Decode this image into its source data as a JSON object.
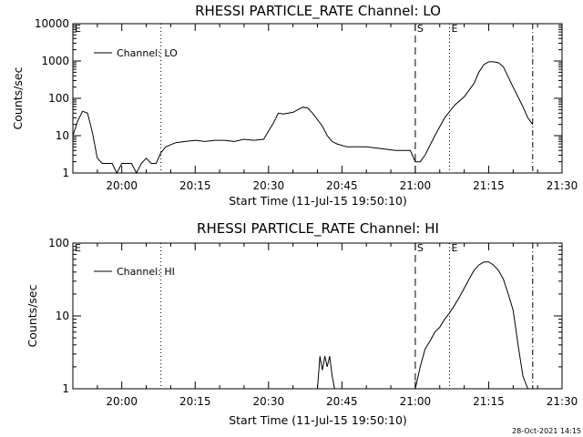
{
  "footer": {
    "timestamp": "28-Oct-2021 14:15"
  },
  "chart_data": [
    {
      "type": "line",
      "title": "RHESSI PARTICLE_RATE Channel: LO",
      "xlabel": "Start Time (11-Jul-15 19:50:10)",
      "ylabel": "Counts/sec",
      "yscale": "log",
      "ylim": [
        1,
        10000
      ],
      "xlim": [
        "19:50",
        "21:30"
      ],
      "x_ticks": [
        "20:00",
        "20:15",
        "20:30",
        "20:45",
        "21:00",
        "21:15",
        "21:30"
      ],
      "y_ticks": [
        "1",
        "10",
        "100",
        "1000",
        "10000"
      ],
      "legend": "top-left",
      "markers": [
        {
          "label": "E",
          "time": "19:50",
          "style": "none"
        },
        {
          "label": "",
          "time": "20:08",
          "style": "dotted"
        },
        {
          "label": "S",
          "time": "21:00",
          "style": "dashed"
        },
        {
          "label": "E",
          "time": "21:07",
          "style": "dotted"
        },
        {
          "label": "",
          "time": "21:24",
          "style": "dash-dot"
        }
      ],
      "series": [
        {
          "name": "Channel: LO",
          "x": [
            "19:50",
            "19:51",
            "19:52",
            "19:53",
            "19:54",
            "19:55",
            "19:56",
            "19:57",
            "19:58",
            "19:59",
            "20:00",
            "20:01",
            "20:02",
            "20:03",
            "20:04",
            "20:05",
            "20:06",
            "20:07",
            "20:08",
            "20:09",
            "20:11",
            "20:13",
            "20:15",
            "20:17",
            "20:19",
            "20:21",
            "20:23",
            "20:25",
            "20:27",
            "20:29",
            "20:31",
            "20:32",
            "20:33",
            "20:35",
            "20:37",
            "20:38",
            "20:39",
            "20:41",
            "20:42",
            "20:43",
            "20:44",
            "20:46",
            "20:48",
            "20:50",
            "20:53",
            "20:56",
            "20:59",
            "21:00",
            "21:01",
            "21:02",
            "21:04",
            "21:06",
            "21:08",
            "21:10",
            "21:12",
            "21:13",
            "21:14",
            "21:15",
            "21:16",
            "21:17",
            "21:18",
            "21:20",
            "21:22",
            "21:23",
            "21:24"
          ],
          "y": [
            10,
            25,
            45,
            40,
            12,
            2.5,
            1.8,
            1.8,
            1.8,
            1,
            1.8,
            1.8,
            1.8,
            1,
            1.8,
            2.5,
            1.8,
            1.8,
            3.5,
            5,
            6.5,
            7,
            7.5,
            7,
            7.5,
            7.5,
            7,
            8,
            7.5,
            8,
            22,
            40,
            38,
            42,
            58,
            55,
            40,
            18,
            10,
            7,
            6,
            5,
            5,
            5,
            4.5,
            4,
            4,
            2,
            2,
            3,
            10,
            30,
            65,
            110,
            250,
            500,
            800,
            950,
            950,
            900,
            700,
            200,
            60,
            30,
            20
          ]
        }
      ]
    },
    {
      "type": "line",
      "title": "RHESSI PARTICLE_RATE Channel: HI",
      "xlabel": "Start Time (11-Jul-15 19:50:10)",
      "ylabel": "Counts/sec",
      "yscale": "log",
      "ylim": [
        1,
        100
      ],
      "xlim": [
        "19:50",
        "21:30"
      ],
      "x_ticks": [
        "20:00",
        "20:15",
        "20:30",
        "20:45",
        "21:00",
        "21:15",
        "21:30"
      ],
      "y_ticks": [
        "1",
        "10",
        "100"
      ],
      "legend": "top-left",
      "markers": [
        {
          "label": "E",
          "time": "19:50",
          "style": "none"
        },
        {
          "label": "",
          "time": "20:08",
          "style": "dotted"
        },
        {
          "label": "S",
          "time": "21:00",
          "style": "dashed"
        },
        {
          "label": "E",
          "time": "21:07",
          "style": "dotted"
        },
        {
          "label": "",
          "time": "21:24",
          "style": "dash-dot"
        }
      ],
      "series": [
        {
          "name": "Channel: HI",
          "segments": [
            {
              "x": [
                "20:40",
                "20:40.5",
                "20:41",
                "20:41.5",
                "20:42",
                "20:42.5",
                "20:43",
                "20:43.5"
              ],
              "y": [
                1,
                2.8,
                1.8,
                2.8,
                2,
                2.8,
                1.5,
                1
              ]
            },
            {
              "x": [
                "21:00",
                "21:01",
                "21:02",
                "21:03",
                "21:04",
                "21:05",
                "21:06",
                "21:07",
                "21:08",
                "21:09",
                "21:10",
                "21:11",
                "21:12",
                "21:13",
                "21:14",
                "21:15",
                "21:16",
                "21:17",
                "21:18",
                "21:19",
                "21:20",
                "21:21",
                "21:22",
                "21:23"
              ],
              "y": [
                1,
                2,
                3.5,
                4.5,
                6,
                7,
                9,
                11,
                14,
                18,
                24,
                32,
                42,
                50,
                55,
                55,
                50,
                42,
                32,
                20,
                12,
                4,
                1.5,
                1
              ]
            }
          ]
        }
      ]
    }
  ]
}
